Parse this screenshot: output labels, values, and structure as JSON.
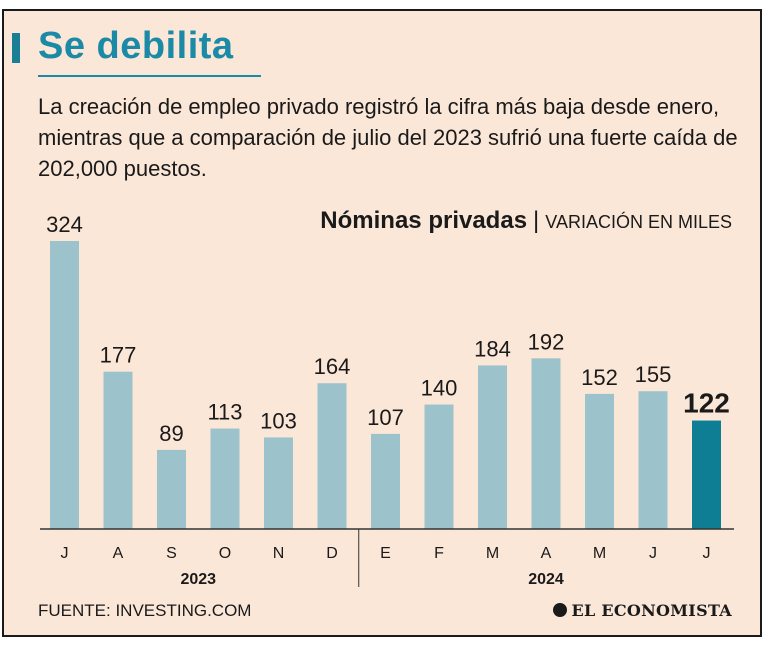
{
  "header": {
    "title": "Se debilita",
    "subtitle": "La creación de empleo privado registró la cifra más baja desde enero, mientras que a comparación de julio del 2023 sufrió una fuerte caída de 202,000 puestos."
  },
  "chart_data": {
    "type": "bar",
    "title": "Nóminas privadas",
    "separator": "|",
    "unit": "VARIACIÓN EN MILES",
    "categories": [
      "J",
      "A",
      "S",
      "O",
      "N",
      "D",
      "E",
      "F",
      "M",
      "A",
      "M",
      "J",
      "J"
    ],
    "years": [
      {
        "label": "2023",
        "start": 0,
        "end": 5
      },
      {
        "label": "2024",
        "start": 6,
        "end": 12
      }
    ],
    "values": [
      324,
      177,
      89,
      113,
      103,
      164,
      107,
      140,
      184,
      192,
      152,
      155,
      122
    ],
    "highlight_index": 12,
    "ylim": [
      0,
      340
    ],
    "xlabel": "",
    "ylabel": "",
    "colors": {
      "bar": "#9cc3cc",
      "highlight": "#0d7e94",
      "axis": "#333333"
    }
  },
  "footer": {
    "source": "FUENTE: INVESTING.COM",
    "brand": "EL ECONOMISTA"
  }
}
